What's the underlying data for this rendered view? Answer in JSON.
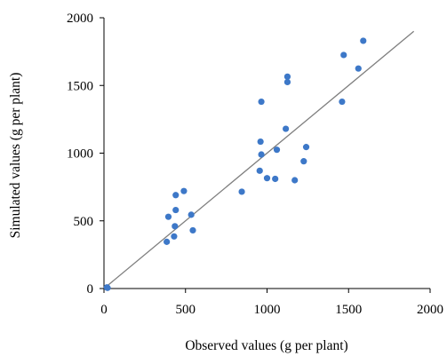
{
  "chart_data": {
    "type": "scatter",
    "title": "",
    "xlabel": "Observed values (g per plant)",
    "ylabel": "Simulated values (g per plant)",
    "xlim": [
      0,
      2000
    ],
    "ylim": [
      0,
      2000
    ],
    "x_ticks": [
      "0",
      "500",
      "1000",
      "1500",
      "2000"
    ],
    "y_ticks": [
      "0",
      "500",
      "1000",
      "1500",
      "2000"
    ],
    "grid": false,
    "legend": "none",
    "point_color": "#3d78c8",
    "line_color": "#7f7f7f",
    "reference_line": {
      "x": [
        0,
        1900
      ],
      "y": [
        0,
        1900
      ]
    },
    "points": [
      {
        "x": 18,
        "y": 8
      },
      {
        "x": 22,
        "y": 5
      },
      {
        "x": 385,
        "y": 345
      },
      {
        "x": 395,
        "y": 530
      },
      {
        "x": 430,
        "y": 385
      },
      {
        "x": 435,
        "y": 460
      },
      {
        "x": 440,
        "y": 580
      },
      {
        "x": 440,
        "y": 690
      },
      {
        "x": 490,
        "y": 720
      },
      {
        "x": 535,
        "y": 545
      },
      {
        "x": 545,
        "y": 430
      },
      {
        "x": 845,
        "y": 715
      },
      {
        "x": 955,
        "y": 870
      },
      {
        "x": 960,
        "y": 1085
      },
      {
        "x": 965,
        "y": 990
      },
      {
        "x": 965,
        "y": 1380
      },
      {
        "x": 1000,
        "y": 815
      },
      {
        "x": 1050,
        "y": 810
      },
      {
        "x": 1060,
        "y": 1025
      },
      {
        "x": 1115,
        "y": 1180
      },
      {
        "x": 1125,
        "y": 1525
      },
      {
        "x": 1125,
        "y": 1565
      },
      {
        "x": 1170,
        "y": 800
      },
      {
        "x": 1225,
        "y": 940
      },
      {
        "x": 1240,
        "y": 1045
      },
      {
        "x": 1460,
        "y": 1380
      },
      {
        "x": 1470,
        "y": 1725
      },
      {
        "x": 1560,
        "y": 1625
      },
      {
        "x": 1590,
        "y": 1830
      }
    ]
  }
}
